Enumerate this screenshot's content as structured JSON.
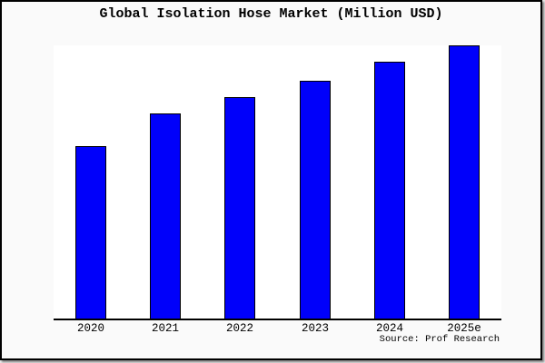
{
  "title": "Global Isolation Hose Market (Million USD)",
  "source": "Source: Prof Research",
  "colors": {
    "bar_fill": "#0000FA",
    "bar_border": "#000000",
    "figure_bg": "#FAFAFA",
    "plot_bg": "#FFFFFF",
    "axis": "#000000",
    "text": "#000000"
  },
  "chart_data": {
    "type": "bar",
    "title": "Global Isolation Hose Market (Million USD)",
    "categories": [
      "2020",
      "2021",
      "2022",
      "2023",
      "2024",
      "2025e"
    ],
    "values": [
      63,
      75,
      81,
      87,
      94,
      100
    ],
    "xlabel": "",
    "ylabel": "",
    "ylim": [
      0,
      100
    ],
    "y_axis_visible": false,
    "grid": false,
    "legend": false,
    "note": "No y-axis scale shown in source image; values are relative bar heights with the 2025e bar normalized to 100."
  }
}
